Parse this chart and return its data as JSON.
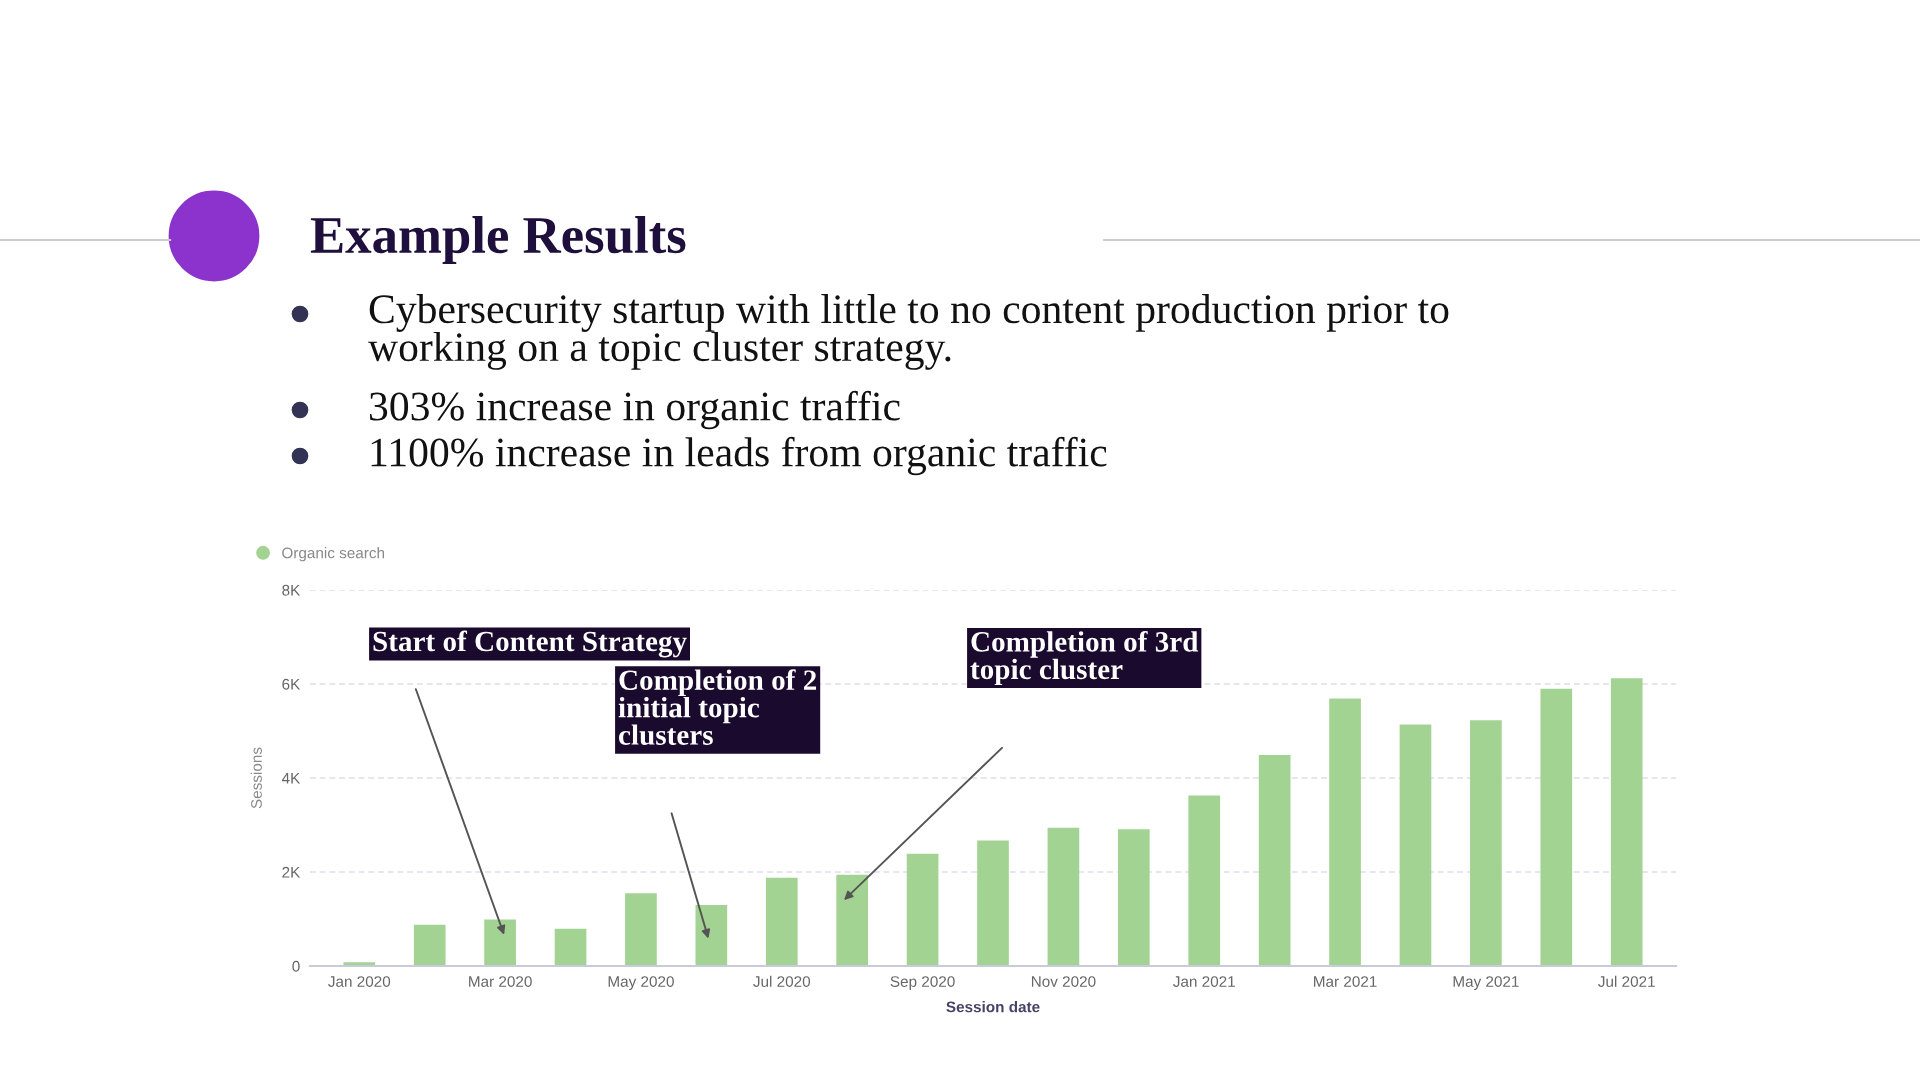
{
  "chart_data": {
    "type": "bar",
    "title": "Example Results",
    "categories": [
      "Jan 2020",
      null,
      "Mar 2020",
      null,
      "May 2020",
      null,
      "Jul 2020",
      null,
      "Sep 2020",
      null,
      "Nov 2020",
      null,
      "Jan 2021",
      null,
      "Mar 2021",
      null,
      "May 2021",
      null,
      "Jul 2021"
    ],
    "series": [
      {
        "name": "Organic search",
        "color": "#a3d393",
        "values": [
          80,
          880,
          990,
          790,
          1550,
          1300,
          1880,
          1940,
          2390,
          2670,
          2940,
          2910,
          3630,
          4490,
          5690,
          5140,
          5230,
          5900,
          6120
        ]
      }
    ],
    "xlabel": "Session date",
    "ylabel": "Sessions",
    "ylim": [
      0,
      8000
    ],
    "yticks": [
      0,
      {
        "value": 2000,
        "label": "2K"
      },
      {
        "value": 4000,
        "label": "4K"
      },
      {
        "value": 6000,
        "label": "6K"
      },
      {
        "value": 8000,
        "label": "8K"
      }
    ],
    "grid": "y",
    "legend": "top left",
    "annotations": [
      "Cybersecurity startup with little to no content production prior to\nworking on a topic cluster strategy.",
      "303% increase in organic traffic",
      "1100% increase in leads from organic traffic",
      "Start of Content Strategy",
      "Completion of 2\ninitial topic\nclusters",
      "Completion of 3rd\ntopic cluster"
    ]
  }
}
